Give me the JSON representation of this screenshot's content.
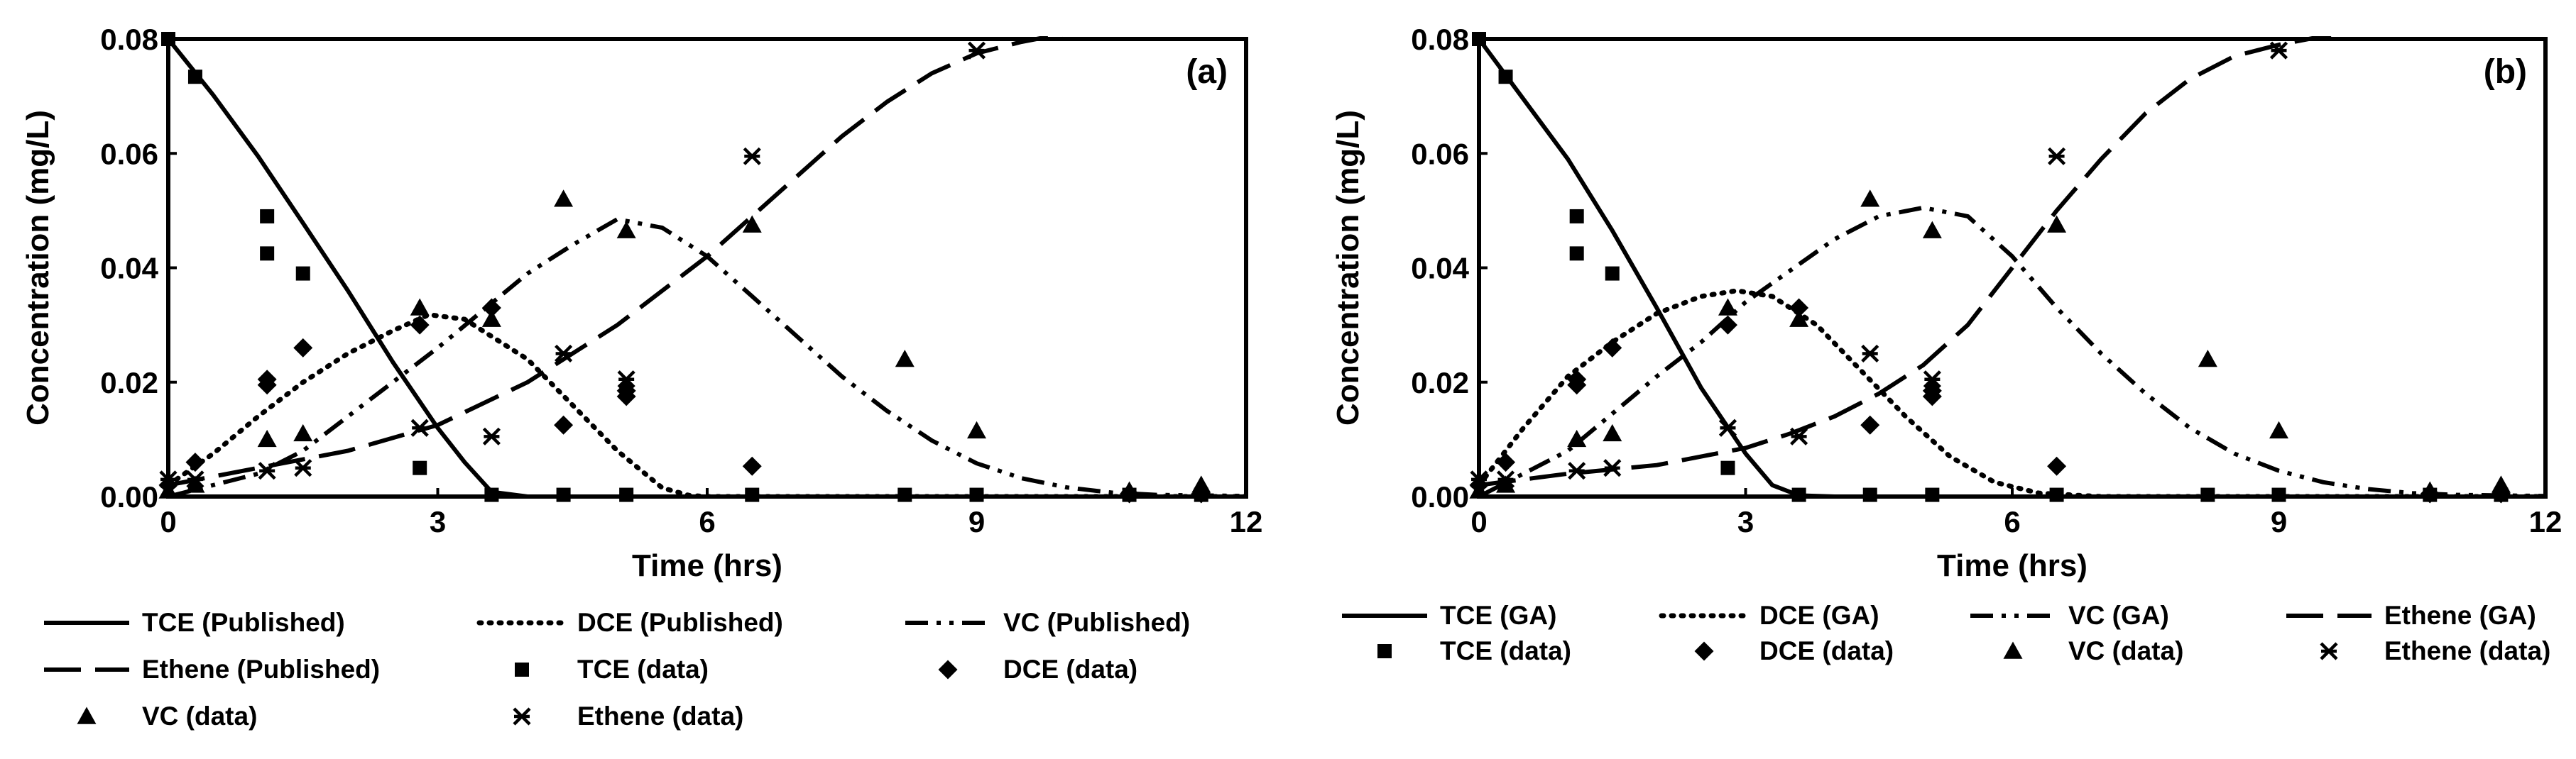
{
  "chart_data": [
    {
      "type": "line",
      "panel_label": "(a)",
      "xlabel": "Time  (hrs)",
      "ylabel": "Concentration (mg/L)",
      "xlim": [
        0,
        12
      ],
      "ylim": [
        0,
        0.08
      ],
      "xticks": [
        0,
        3,
        6,
        9,
        12
      ],
      "yticks": [
        "0.00",
        "0.02",
        "0.04",
        "0.06",
        "0.08"
      ],
      "legend_position": "bottom",
      "series": [
        {
          "name": "TCE (Published)",
          "style": "solid",
          "x": [
            0,
            0.5,
            1,
            1.5,
            2,
            2.5,
            3,
            3.3,
            3.6,
            4,
            6,
            8,
            10,
            12
          ],
          "y": [
            0.08,
            0.0702,
            0.0595,
            0.0478,
            0.036,
            0.0235,
            0.012,
            0.006,
            0.0008,
            0,
            0,
            0,
            0,
            0
          ]
        },
        {
          "name": "DCE (Published)",
          "style": "dotted",
          "x": [
            0,
            0.5,
            1,
            1.5,
            2,
            2.5,
            2.9,
            3.3,
            4,
            4.5,
            5,
            5.5,
            5.8,
            6,
            8,
            10,
            12
          ],
          "y": [
            0.002,
            0.0075,
            0.014,
            0.02,
            0.025,
            0.029,
            0.0318,
            0.031,
            0.024,
            0.016,
            0.008,
            0.0015,
            0.0002,
            0,
            0,
            0,
            0
          ]
        },
        {
          "name": "VC (Published)",
          "style": "dashdotdot",
          "x": [
            0,
            1,
            1.5,
            2,
            3,
            4,
            4.5,
            5,
            5.5,
            6,
            6.5,
            7,
            7.5,
            8,
            8.5,
            9,
            9.5,
            10,
            10.5,
            11,
            12
          ],
          "y": [
            0,
            0.004,
            0.008,
            0.014,
            0.026,
            0.039,
            0.044,
            0.0485,
            0.047,
            0.042,
            0.035,
            0.028,
            0.021,
            0.015,
            0.0098,
            0.0058,
            0.0032,
            0.0016,
            0.0007,
            0.0003,
            0.0001
          ]
        },
        {
          "name": "Ethene (Published)",
          "style": "longdash",
          "x": [
            0,
            1,
            2,
            3,
            4,
            5,
            6,
            6.5,
            7,
            7.5,
            8,
            8.5,
            9,
            9.5,
            10,
            10.5,
            11,
            12
          ],
          "y": [
            0.002,
            0.005,
            0.008,
            0.0125,
            0.02,
            0.03,
            0.042,
            0.049,
            0.056,
            0.063,
            0.069,
            0.074,
            0.0775,
            0.0795,
            0.081,
            0.0815,
            0.082,
            0.082
          ]
        }
      ],
      "points": [
        {
          "name": "TCE (data)",
          "marker": "square",
          "x": [
            0,
            0.3,
            1.1,
            1.1,
            1.5,
            2.8,
            3.6,
            4.4,
            5.1,
            6.5,
            8.2,
            9,
            10.7,
            11.5
          ],
          "y": [
            0.08,
            0.0734,
            0.049,
            0.0425,
            0.039,
            0.005,
            0.0003,
            0.0003,
            0.0003,
            0.0003,
            0.0003,
            0.0003,
            0.0003,
            0.0003
          ]
        },
        {
          "name": "DCE (data)",
          "marker": "diamond",
          "x": [
            0,
            0.3,
            1.1,
            1.1,
            1.5,
            2.8,
            3.6,
            4.4,
            5.1,
            5.1,
            6.5,
            10.7,
            11.5
          ],
          "y": [
            0.002,
            0.006,
            0.0205,
            0.0195,
            0.026,
            0.03,
            0.033,
            0.0125,
            0.0175,
            0.0185,
            0.0053,
            0.0005,
            0.0005
          ]
        },
        {
          "name": "VC (data)",
          "marker": "triangle",
          "x": [
            0,
            0.3,
            1.1,
            1.5,
            2.8,
            3.6,
            4.4,
            5.1,
            6.5,
            8.2,
            9,
            10.7,
            11.5
          ],
          "y": [
            0.001,
            0.002,
            0.01,
            0.011,
            0.033,
            0.031,
            0.052,
            0.0465,
            0.0475,
            0.024,
            0.0115,
            0.001,
            0.002
          ]
        },
        {
          "name": "Ethene (data)",
          "marker": "asterisk",
          "x": [
            0,
            0.3,
            1.1,
            1.5,
            2.8,
            3.6,
            4.4,
            5.1,
            6.5,
            9
          ],
          "y": [
            0.003,
            0.003,
            0.0045,
            0.005,
            0.012,
            0.0105,
            0.025,
            0.0205,
            0.0595,
            0.078
          ]
        }
      ],
      "legend_order": [
        "TCE (Published)",
        "DCE (Published)",
        "VC (Published)",
        "Ethene (Published)",
        "TCE (data)",
        "DCE (data)",
        "VC (data)",
        "Ethene (data)"
      ]
    },
    {
      "type": "line",
      "panel_label": "(b)",
      "xlabel": "Time  (hrs)",
      "ylabel": "Concentration (mg/L)",
      "xlim": [
        0,
        12
      ],
      "ylim": [
        0,
        0.08
      ],
      "xticks": [
        0,
        3,
        6,
        9,
        12
      ],
      "yticks": [
        "0.00",
        "0.02",
        "0.04",
        "0.06",
        "0.08"
      ],
      "legend_position": "bottom",
      "series": [
        {
          "name": "TCE (GA)",
          "style": "solid",
          "x": [
            0,
            0.5,
            1,
            1.5,
            2,
            2.5,
            3,
            3.3,
            3.6,
            4,
            6,
            8,
            10,
            12
          ],
          "y": [
            0.08,
            0.0695,
            0.059,
            0.0465,
            0.033,
            0.019,
            0.0075,
            0.002,
            0.0002,
            0,
            0,
            0,
            0,
            0
          ]
        },
        {
          "name": "DCE (GA)",
          "style": "dotted",
          "x": [
            0,
            0.5,
            1,
            1.5,
            2,
            2.5,
            2.9,
            3.3,
            3.8,
            4.3,
            4.8,
            5.3,
            5.8,
            6.3,
            7,
            8,
            10,
            12
          ],
          "y": [
            0.002,
            0.012,
            0.021,
            0.027,
            0.032,
            0.035,
            0.036,
            0.035,
            0.03,
            0.022,
            0.014,
            0.007,
            0.0025,
            0.0006,
            0,
            0,
            0,
            0
          ]
        },
        {
          "name": "VC (GA)",
          "style": "dashdotdot",
          "x": [
            0,
            1,
            1.5,
            2,
            2.5,
            3,
            3.5,
            4,
            4.5,
            5,
            5.5,
            6,
            6.5,
            7,
            7.5,
            8,
            8.5,
            9,
            9.5,
            10,
            10.5,
            11,
            12
          ],
          "y": [
            0,
            0.008,
            0.0145,
            0.021,
            0.027,
            0.034,
            0.0395,
            0.045,
            0.049,
            0.0505,
            0.049,
            0.042,
            0.033,
            0.025,
            0.018,
            0.012,
            0.0075,
            0.0045,
            0.0025,
            0.0013,
            0.0006,
            0.0003,
            0.0001
          ]
        },
        {
          "name": "Ethene (GA)",
          "style": "longdash",
          "x": [
            0,
            1,
            2,
            3,
            3.5,
            4,
            4.5,
            5,
            5.5,
            6,
            6.5,
            7,
            7.5,
            8,
            8.5,
            9,
            9.5,
            10,
            11,
            12
          ],
          "y": [
            0.002,
            0.004,
            0.0055,
            0.0085,
            0.011,
            0.014,
            0.018,
            0.023,
            0.03,
            0.04,
            0.05,
            0.059,
            0.067,
            0.073,
            0.077,
            0.079,
            0.0805,
            0.0815,
            0.082,
            0.082
          ]
        }
      ],
      "points": [
        {
          "name": "TCE (data)",
          "marker": "square",
          "x": [
            0,
            0.3,
            1.1,
            1.1,
            1.5,
            2.8,
            3.6,
            4.4,
            5.1,
            6.5,
            8.2,
            9,
            10.7,
            11.5
          ],
          "y": [
            0.08,
            0.0734,
            0.049,
            0.0425,
            0.039,
            0.005,
            0.0003,
            0.0003,
            0.0003,
            0.0003,
            0.0003,
            0.0003,
            0.0003,
            0.0003
          ]
        },
        {
          "name": "DCE (data)",
          "marker": "diamond",
          "x": [
            0,
            0.3,
            1.1,
            1.1,
            1.5,
            2.8,
            3.6,
            4.4,
            5.1,
            5.1,
            6.5,
            10.7,
            11.5
          ],
          "y": [
            0.002,
            0.006,
            0.0205,
            0.0195,
            0.026,
            0.03,
            0.033,
            0.0125,
            0.0175,
            0.0185,
            0.0053,
            0.0005,
            0.0005
          ]
        },
        {
          "name": "VC (data)",
          "marker": "triangle",
          "x": [
            0,
            0.3,
            1.1,
            1.5,
            2.8,
            3.6,
            4.4,
            5.1,
            6.5,
            8.2,
            9,
            10.7,
            11.5
          ],
          "y": [
            0.001,
            0.002,
            0.01,
            0.011,
            0.033,
            0.031,
            0.052,
            0.0465,
            0.0475,
            0.024,
            0.0115,
            0.001,
            0.002
          ]
        },
        {
          "name": "Ethene (data)",
          "marker": "asterisk",
          "x": [
            0,
            0.3,
            1.1,
            1.5,
            2.8,
            3.6,
            4.4,
            5.1,
            6.5,
            9
          ],
          "y": [
            0.003,
            0.003,
            0.0045,
            0.005,
            0.012,
            0.0105,
            0.025,
            0.0205,
            0.0595,
            0.078
          ]
        }
      ],
      "legend_order": [
        "TCE (GA)",
        "DCE (GA)",
        "VC (GA)",
        "Ethene (GA)",
        "TCE (data)",
        "DCE (data)",
        "VC (data)",
        "Ethene (data)"
      ]
    }
  ]
}
